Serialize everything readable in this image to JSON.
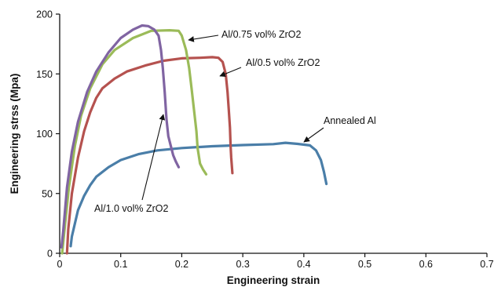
{
  "chart_data": {
    "type": "line",
    "title": "",
    "xlabel": "Engineering strain",
    "ylabel": "Engineering strss (Mpa)",
    "xlim": [
      0,
      0.7
    ],
    "ylim": [
      0,
      200
    ],
    "x_ticks": [
      "0",
      "0.1",
      "0.2",
      "0.3",
      "0.4",
      "0.5",
      "0.6",
      "0.7"
    ],
    "y_ticks": [
      "0",
      "50",
      "100",
      "150",
      "200"
    ],
    "grid": false,
    "legend": "none (inline annotations with arrows)",
    "series": [
      {
        "name": "Annealed Al",
        "color": "#4a7ea8",
        "points": [
          [
            0.018,
            6
          ],
          [
            0.02,
            14
          ],
          [
            0.025,
            25
          ],
          [
            0.03,
            36
          ],
          [
            0.04,
            48
          ],
          [
            0.05,
            57
          ],
          [
            0.06,
            64
          ],
          [
            0.08,
            72
          ],
          [
            0.1,
            78
          ],
          [
            0.13,
            83
          ],
          [
            0.16,
            86
          ],
          [
            0.2,
            88
          ],
          [
            0.25,
            89.5
          ],
          [
            0.3,
            90.5
          ],
          [
            0.35,
            91.3
          ],
          [
            0.37,
            92.4
          ],
          [
            0.39,
            91.5
          ],
          [
            0.41,
            90.2
          ],
          [
            0.42,
            86
          ],
          [
            0.428,
            78
          ],
          [
            0.433,
            68
          ],
          [
            0.437,
            58
          ]
        ]
      },
      {
        "name": "Al/0.5 vol% ZrO2",
        "color": "#b5524f",
        "points": [
          [
            0.012,
            0
          ],
          [
            0.014,
            20
          ],
          [
            0.02,
            50
          ],
          [
            0.03,
            80
          ],
          [
            0.04,
            102
          ],
          [
            0.05,
            118
          ],
          [
            0.06,
            130
          ],
          [
            0.07,
            138
          ],
          [
            0.09,
            146
          ],
          [
            0.11,
            152
          ],
          [
            0.14,
            157
          ],
          [
            0.17,
            161
          ],
          [
            0.2,
            163
          ],
          [
            0.23,
            163.5
          ],
          [
            0.25,
            164
          ],
          [
            0.26,
            163.5
          ],
          [
            0.267,
            160
          ],
          [
            0.272,
            150
          ],
          [
            0.275,
            135
          ],
          [
            0.277,
            120
          ],
          [
            0.279,
            105
          ],
          [
            0.28,
            90
          ],
          [
            0.281,
            80
          ],
          [
            0.283,
            67
          ]
        ]
      },
      {
        "name": "Al/0.75 vol% ZrO2",
        "color": "#9bbb59",
        "points": [
          [
            0.004,
            0
          ],
          [
            0.008,
            20
          ],
          [
            0.015,
            55
          ],
          [
            0.025,
            90
          ],
          [
            0.035,
            115
          ],
          [
            0.05,
            138
          ],
          [
            0.07,
            158
          ],
          [
            0.09,
            170
          ],
          [
            0.12,
            180
          ],
          [
            0.15,
            186
          ],
          [
            0.18,
            186.5
          ],
          [
            0.195,
            186
          ],
          [
            0.2,
            182
          ],
          [
            0.207,
            170
          ],
          [
            0.212,
            155
          ],
          [
            0.216,
            138
          ],
          [
            0.22,
            120
          ],
          [
            0.224,
            102
          ],
          [
            0.226,
            88
          ],
          [
            0.23,
            75
          ],
          [
            0.235,
            70
          ],
          [
            0.24,
            66
          ]
        ]
      },
      {
        "name": "Al/1.0 vol% ZrO2",
        "color": "#8064a2",
        "points": [
          [
            0.003,
            5
          ],
          [
            0.006,
            20
          ],
          [
            0.012,
            55
          ],
          [
            0.02,
            85
          ],
          [
            0.03,
            110
          ],
          [
            0.045,
            135
          ],
          [
            0.06,
            152
          ],
          [
            0.08,
            168
          ],
          [
            0.1,
            180
          ],
          [
            0.12,
            187
          ],
          [
            0.135,
            190.5
          ],
          [
            0.145,
            190
          ],
          [
            0.155,
            187
          ],
          [
            0.162,
            182
          ],
          [
            0.166,
            170
          ],
          [
            0.169,
            155
          ],
          [
            0.172,
            135
          ],
          [
            0.175,
            112
          ],
          [
            0.178,
            98
          ],
          [
            0.182,
            90
          ],
          [
            0.186,
            82
          ],
          [
            0.19,
            77
          ],
          [
            0.195,
            72
          ]
        ]
      }
    ],
    "annotations": [
      {
        "text": "Al/0.75 vol% ZrO2",
        "series": "Al/0.75 vol% ZrO2"
      },
      {
        "text": "Al/0.5 vol% ZrO2",
        "series": "Al/0.5 vol% ZrO2"
      },
      {
        "text": "Annealed Al",
        "series": "Annealed Al"
      },
      {
        "text": "Al/1.0 vol% ZrO2",
        "series": "Al/1.0 vol% ZrO2"
      }
    ]
  }
}
